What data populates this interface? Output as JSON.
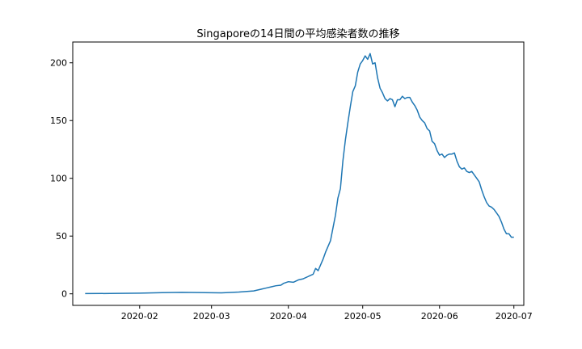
{
  "chart_data": {
    "type": "line",
    "title": "Singaporeの14日間の平均感染者数の推移",
    "xlabel": "",
    "ylabel": "",
    "x_range": [
      "2020-01-05",
      "2020-07-05"
    ],
    "ylim": [
      -10,
      218
    ],
    "x_ticks": [
      "2020-02",
      "2020-03",
      "2020-04",
      "2020-05",
      "2020-06",
      "2020-07"
    ],
    "y_ticks": [
      0,
      50,
      100,
      150,
      200
    ],
    "grid": false,
    "color": "#1f77b4",
    "series": [
      {
        "points": [
          [
            "2020-01-10",
            0.2
          ],
          [
            "2020-01-20",
            0.3
          ],
          [
            "2020-02-01",
            0.6
          ],
          [
            "2020-02-10",
            1.0
          ],
          [
            "2020-02-18",
            1.3
          ],
          [
            "2020-02-25",
            1.1
          ],
          [
            "2020-03-05",
            0.8
          ],
          [
            "2020-03-12",
            1.5
          ],
          [
            "2020-03-18",
            2.5
          ],
          [
            "2020-03-21",
            4.0
          ],
          [
            "2020-03-23",
            5.0
          ],
          [
            "2020-03-25",
            6.0
          ],
          [
            "2020-03-27",
            7.0
          ],
          [
            "2020-03-29",
            7.5
          ],
          [
            "2020-03-30",
            9.0
          ],
          [
            "2020-04-01",
            10.5
          ],
          [
            "2020-04-03",
            10.0
          ],
          [
            "2020-04-05",
            12.0
          ],
          [
            "2020-04-07",
            13.0
          ],
          [
            "2020-04-09",
            15.0
          ],
          [
            "2020-04-11",
            17.0
          ],
          [
            "2020-04-12",
            22.0
          ],
          [
            "2020-04-13",
            20.0
          ],
          [
            "2020-04-14",
            25.0
          ],
          [
            "2020-04-15",
            30.0
          ],
          [
            "2020-04-16",
            36.0
          ],
          [
            "2020-04-17",
            41.0
          ],
          [
            "2020-04-18",
            46.0
          ],
          [
            "2020-04-19",
            57.0
          ],
          [
            "2020-04-20",
            68.0
          ],
          [
            "2020-04-21",
            83.0
          ],
          [
            "2020-04-22",
            91.0
          ],
          [
            "2020-04-23",
            115.0
          ],
          [
            "2020-04-24",
            133.0
          ],
          [
            "2020-04-25",
            148.0
          ],
          [
            "2020-04-26",
            162.0
          ],
          [
            "2020-04-27",
            175.0
          ],
          [
            "2020-04-28",
            180.0
          ],
          [
            "2020-04-29",
            192.0
          ],
          [
            "2020-04-30",
            199.0
          ],
          [
            "2020-05-01",
            202.0
          ],
          [
            "2020-05-02",
            206.0
          ],
          [
            "2020-05-03",
            203.0
          ],
          [
            "2020-05-04",
            208.0
          ],
          [
            "2020-05-05",
            199.0
          ],
          [
            "2020-05-06",
            200.0
          ],
          [
            "2020-05-07",
            187.0
          ],
          [
            "2020-05-08",
            178.0
          ],
          [
            "2020-05-09",
            174.0
          ],
          [
            "2020-05-10",
            169.0
          ],
          [
            "2020-05-11",
            167.0
          ],
          [
            "2020-05-12",
            169.0
          ],
          [
            "2020-05-13",
            168.0
          ],
          [
            "2020-05-14",
            162.0
          ],
          [
            "2020-05-15",
            168.0
          ],
          [
            "2020-05-16",
            168.0
          ],
          [
            "2020-05-17",
            171.0
          ],
          [
            "2020-05-18",
            169.0
          ],
          [
            "2020-05-19",
            170.0
          ],
          [
            "2020-05-20",
            170.0
          ],
          [
            "2020-05-21",
            166.0
          ],
          [
            "2020-05-22",
            163.0
          ],
          [
            "2020-05-23",
            159.0
          ],
          [
            "2020-05-24",
            153.0
          ],
          [
            "2020-05-25",
            150.0
          ],
          [
            "2020-05-26",
            148.0
          ],
          [
            "2020-05-27",
            143.0
          ],
          [
            "2020-05-28",
            141.0
          ],
          [
            "2020-05-29",
            132.0
          ],
          [
            "2020-05-30",
            130.0
          ],
          [
            "2020-05-31",
            124.0
          ],
          [
            "2020-06-01",
            120.0
          ],
          [
            "2020-06-02",
            121.0
          ],
          [
            "2020-06-03",
            118.0
          ],
          [
            "2020-06-04",
            120.0
          ],
          [
            "2020-06-05",
            121.0
          ],
          [
            "2020-06-06",
            121.0
          ],
          [
            "2020-06-07",
            122.0
          ],
          [
            "2020-06-08",
            115.0
          ],
          [
            "2020-06-09",
            110.0
          ],
          [
            "2020-06-10",
            108.0
          ],
          [
            "2020-06-11",
            109.0
          ],
          [
            "2020-06-12",
            106.0
          ],
          [
            "2020-06-13",
            105.0
          ],
          [
            "2020-06-14",
            106.0
          ],
          [
            "2020-06-15",
            103.0
          ],
          [
            "2020-06-16",
            100.0
          ],
          [
            "2020-06-17",
            97.0
          ],
          [
            "2020-06-18",
            90.0
          ],
          [
            "2020-06-19",
            84.0
          ],
          [
            "2020-06-20",
            79.0
          ],
          [
            "2020-06-21",
            76.0
          ],
          [
            "2020-06-22",
            75.0
          ],
          [
            "2020-06-23",
            73.0
          ],
          [
            "2020-06-24",
            70.0
          ],
          [
            "2020-06-25",
            67.0
          ],
          [
            "2020-06-26",
            62.0
          ],
          [
            "2020-06-27",
            56.0
          ],
          [
            "2020-06-28",
            52.0
          ],
          [
            "2020-06-29",
            52.0
          ],
          [
            "2020-06-30",
            49.0
          ],
          [
            "2020-07-01",
            49.0
          ]
        ]
      }
    ]
  }
}
